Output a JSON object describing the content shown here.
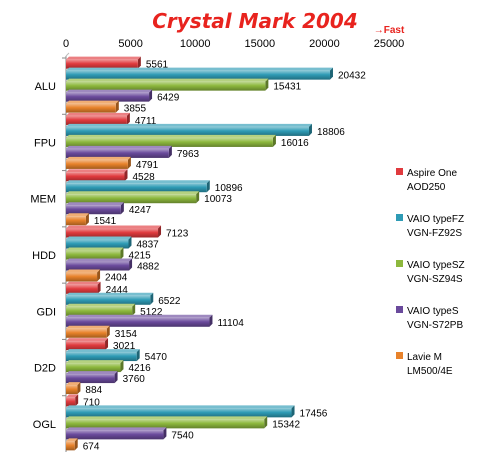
{
  "chart_data": {
    "type": "bar",
    "orientation": "horizontal",
    "title": "Crystal Mark 2004",
    "annotation": "→Fast",
    "xlim": [
      0,
      25000
    ],
    "xticks": [
      "0",
      "5000",
      "10000",
      "15000",
      "20000",
      "25000"
    ],
    "xlabel": "",
    "ylabel": "",
    "grid": false,
    "legend_position": "right",
    "categories": [
      "ALU",
      "FPU",
      "MEM",
      "HDD",
      "GDI",
      "D2D",
      "OGL"
    ],
    "series": [
      {
        "name": "Aspire One AOD250",
        "name_lines": [
          "Aspire One",
          "AOD250"
        ],
        "color": "#E03A3E",
        "values": [
          5561,
          4711,
          4528,
          7123,
          2444,
          3021,
          710
        ]
      },
      {
        "name": "VAIO typeFZ VGN-FZ92S",
        "name_lines": [
          "VAIO typeFZ",
          "VGN-FZ92S"
        ],
        "color": "#2E9BB5",
        "values": [
          20432,
          18806,
          10896,
          4837,
          6522,
          5470,
          17456
        ]
      },
      {
        "name": "VAIO typeSZ VGN-SZ94S",
        "name_lines": [
          "VAIO typeSZ",
          "VGN-SZ94S"
        ],
        "color": "#8DB83D",
        "values": [
          15431,
          16016,
          10073,
          4215,
          5122,
          4216,
          15342
        ]
      },
      {
        "name": "VAIO typeS VGN-S72PB",
        "name_lines": [
          "VAIO typeS",
          "VGN-S72PB"
        ],
        "color": "#6A4A9C",
        "values": [
          6429,
          7963,
          4247,
          4882,
          11104,
          3760,
          7540
        ]
      },
      {
        "name": "Lavie M LM500/4E",
        "name_lines": [
          "Lavie M",
          "LM500/4E"
        ],
        "color": "#E8822A",
        "values": [
          3855,
          4791,
          1541,
          2404,
          3154,
          884,
          674
        ]
      }
    ]
  },
  "colors": {
    "title": "#E8231E",
    "annotation": "#E8231E"
  }
}
